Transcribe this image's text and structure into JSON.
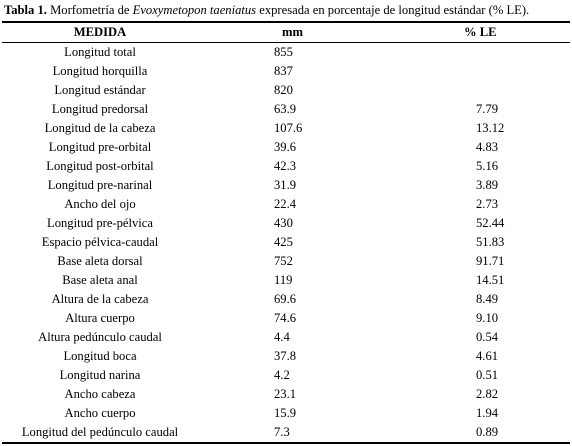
{
  "caption": {
    "label": "Tabla 1.",
    "text_before": " Morfometría de ",
    "species": "Evoxymetopon taeniatus",
    "text_after": " expresada en porcentaje de longitud estándar (% LE)."
  },
  "table": {
    "headers": [
      "MEDIDA",
      "mm",
      "% LE"
    ],
    "rows": [
      {
        "medida": "Longitud total",
        "mm": "855",
        "le": ""
      },
      {
        "medida": "Longitud horquilla",
        "mm": "837",
        "le": ""
      },
      {
        "medida": "Longitud estándar",
        "mm": "820",
        "le": ""
      },
      {
        "medida": "Longitud predorsal",
        "mm": "63.9",
        "le": "7.79"
      },
      {
        "medida": "Longitud de la cabeza",
        "mm": "107.6",
        "le": "13.12"
      },
      {
        "medida": "Longitud pre-orbital",
        "mm": "39.6",
        "le": "4.83"
      },
      {
        "medida": "Longitud post-orbital",
        "mm": "42.3",
        "le": "5.16"
      },
      {
        "medida": "Longitud pre-narinal",
        "mm": "31.9",
        "le": "3.89"
      },
      {
        "medida": "Ancho del ojo",
        "mm": "22.4",
        "le": "2.73"
      },
      {
        "medida": "Longitud pre-pélvica",
        "mm": "430",
        "le": "52.44"
      },
      {
        "medida": "Espacio pélvica-caudal",
        "mm": "425",
        "le": "51.83"
      },
      {
        "medida": "Base aleta dorsal",
        "mm": "752",
        "le": "91.71"
      },
      {
        "medida": "Base aleta anal",
        "mm": "119",
        "le": "14.51"
      },
      {
        "medida": "Altura de la cabeza",
        "mm": "69.6",
        "le": "8.49"
      },
      {
        "medida": "Altura cuerpo",
        "mm": "74.6",
        "le": "9.10"
      },
      {
        "medida": "Altura pedúnculo caudal",
        "mm": "4.4",
        "le": "0.54"
      },
      {
        "medida": "Longitud boca",
        "mm": "37.8",
        "le": "4.61"
      },
      {
        "medida": "Longitud narina",
        "mm": "4.2",
        "le": "0.51"
      },
      {
        "medida": "Ancho cabeza",
        "mm": "23.1",
        "le": "2.82"
      },
      {
        "medida": "Ancho cuerpo",
        "mm": "15.9",
        "le": "1.94"
      },
      {
        "medida": "Longitud del pedúnculo caudal",
        "mm": "7.3",
        "le": "0.89"
      }
    ]
  }
}
